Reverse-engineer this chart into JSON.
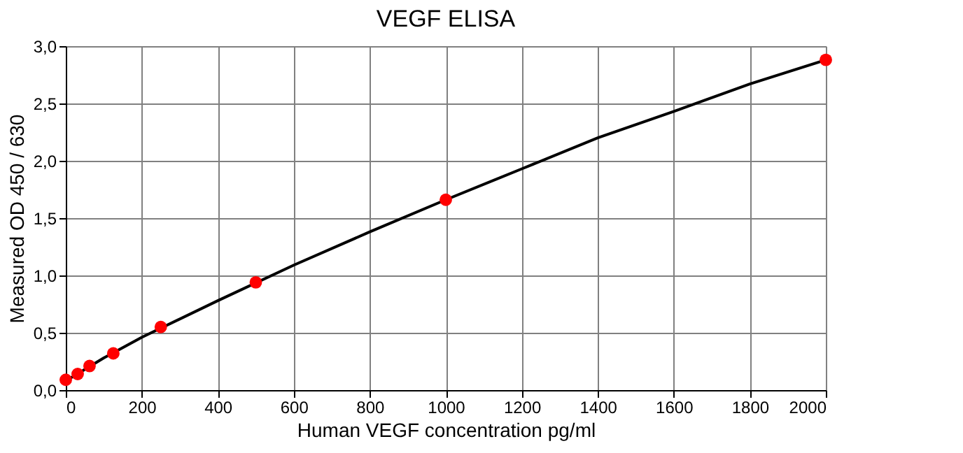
{
  "chart_data": {
    "type": "scatter",
    "title": "VEGF ELISA",
    "xlabel": "Human VEGF concentration pg/ml",
    "ylabel": "Measured OD 450 / 630",
    "x": [
      0,
      31.25,
      62.5,
      125,
      250,
      500,
      1000,
      2000
    ],
    "series": [
      {
        "type": "line",
        "color": "#000000",
        "marker": "none",
        "x": [
          0,
          50,
          100,
          200,
          400,
          600,
          800,
          1000,
          1200,
          1400,
          1600,
          1800,
          2000
        ],
        "values": [
          0.08,
          0.18,
          0.28,
          0.46,
          0.78,
          1.09,
          1.38,
          1.66,
          1.93,
          2.2,
          2.43,
          2.67,
          2.88
        ]
      },
      {
        "color": "#ff0000",
        "marker": "circle",
        "values": [
          0.09,
          0.14,
          0.21,
          0.32,
          0.55,
          0.94,
          1.66,
          2.88
        ]
      }
    ],
    "xlim": [
      0,
      2000
    ],
    "xticks": [
      0,
      200,
      400,
      600,
      800,
      1000,
      1200,
      1400,
      1600,
      1800,
      2000
    ],
    "ylim": [
      0,
      3
    ],
    "yticks": [
      {
        "value": 0,
        "label": "0,0"
      },
      {
        "value": 0.5,
        "label": "0,5"
      },
      {
        "value": 1,
        "label": "1,0"
      },
      {
        "value": 1.5,
        "label": "1,5"
      },
      {
        "value": 2,
        "label": "2,0"
      },
      {
        "value": 2.5,
        "label": "2,5"
      },
      {
        "value": 3,
        "label": "3,0"
      }
    ],
    "grid": true
  }
}
